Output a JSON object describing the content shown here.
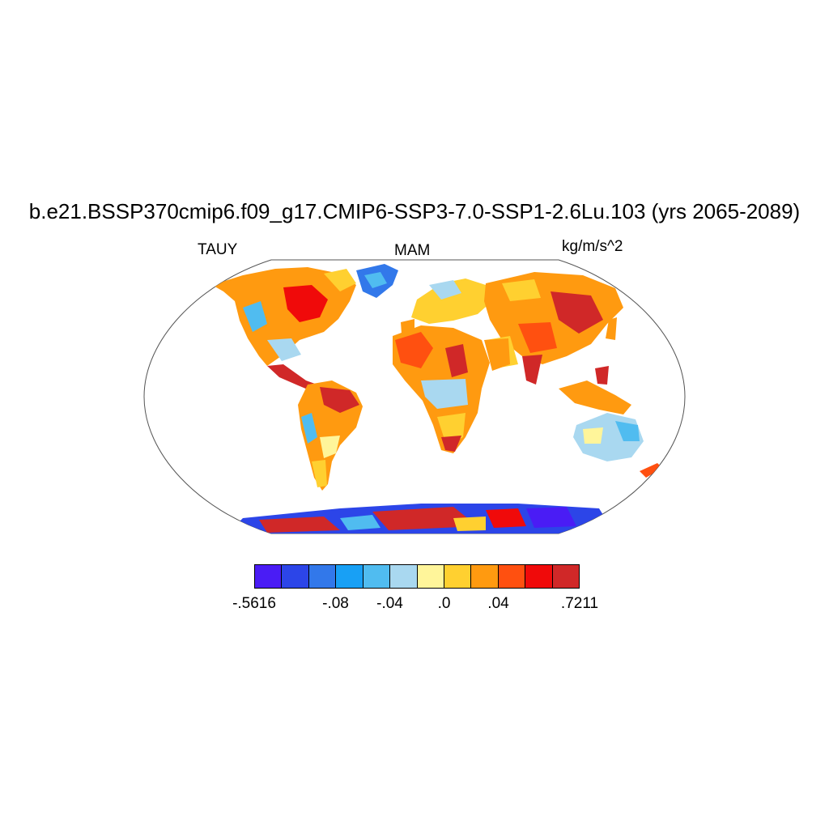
{
  "title": "b.e21.BSSP370cmip6.f09_g17.CMIP6-SSP3-7.0-SSP1-2.6Lu.103 (yrs 2065-2089)",
  "left_label": "TAUY",
  "center_label": "MAM",
  "right_label": "kg/m/s^2",
  "colorbar": {
    "colors": [
      "#4a1cf5",
      "#2c45e8",
      "#3278ea",
      "#18a0f5",
      "#50bcf0",
      "#a9d8f0",
      "#fff59a",
      "#ffd030",
      "#ff9a10",
      "#ff5010",
      "#f00a0a",
      "#d02828"
    ],
    "labels": [
      {
        "text": "-.5616",
        "boundary": 0
      },
      {
        "text": "-.08",
        "boundary": 3
      },
      {
        "text": "-.04",
        "boundary": 5
      },
      {
        "text": ".0",
        "boundary": 7
      },
      {
        "text": ".04",
        "boundary": 9
      },
      {
        "text": ".7211",
        "boundary": 12
      }
    ]
  }
}
